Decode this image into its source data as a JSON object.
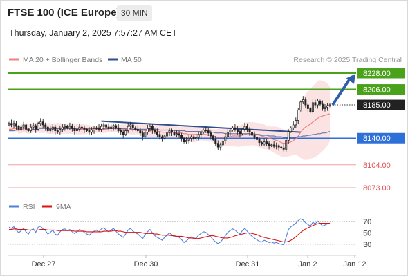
{
  "header": {
    "title": "FTSE 100 (ICE Europe)",
    "timeframe": "30 MIN",
    "datetime": "Thursday, January 2, 2025 7:57:27 AM CET"
  },
  "legend": {
    "ma20": "MA 20 + Bollinger Bands",
    "ma50": "MA 50",
    "ma20_color": "#f08080",
    "ma50_color": "#2e4f8f"
  },
  "copyright": "Research © 2025 Trading Central",
  "colors": {
    "green": "#4aa11a",
    "blue": "#2f6fd8",
    "red": "#e05252",
    "dark": "#222222",
    "bollinger": "#fbd9d9"
  },
  "chart_data": [
    {
      "type": "candlestick",
      "title": "FTSE 100 (ICE Europe)",
      "ylim": [
        8060,
        8238
      ],
      "x_ticks": [
        "Dec 27",
        "Dec 30",
        "Dec 31",
        "Jan 2",
        "Jan 12"
      ],
      "levels": [
        {
          "label": "8228.00",
          "value": 8228,
          "kind": "target"
        },
        {
          "label": "8206.00",
          "value": 8206,
          "kind": "target"
        },
        {
          "label": "8185.00",
          "value": 8185,
          "kind": "last_price"
        },
        {
          "label": "8140.00",
          "value": 8140,
          "kind": "pivot"
        },
        {
          "label": "8104.00",
          "value": 8104,
          "kind": "support"
        },
        {
          "label": "8073.00",
          "value": 8073,
          "kind": "support"
        }
      ],
      "trendline": {
        "from": 8163,
        "to": 8148
      },
      "arrow": {
        "from": 8185,
        "to": 8227
      },
      "close": [
        8160,
        8158,
        8160,
        8156,
        8152,
        8155,
        8158,
        8152,
        8150,
        8155,
        8157,
        8152,
        8160,
        8162,
        8158,
        8155,
        8150,
        8152,
        8155,
        8150,
        8148,
        8152,
        8155,
        8156,
        8154,
        8156,
        8153,
        8150,
        8152,
        8155,
        8154,
        8152,
        8150,
        8148,
        8151,
        8153,
        8154,
        8152,
        8156,
        8158,
        8155,
        8153,
        8155,
        8157,
        8154,
        8150,
        8148,
        8145,
        8150,
        8156,
        8158,
        8154,
        8152,
        8150,
        8147,
        8142,
        8148,
        8153,
        8156,
        8151,
        8148,
        8145,
        8142,
        8140,
        8143,
        8147,
        8150,
        8148,
        8145,
        8146,
        8144,
        8140,
        8135,
        8137,
        8140,
        8142,
        8139,
        8141,
        8145,
        8148,
        8151,
        8150,
        8147,
        8143,
        8138,
        8133,
        8128,
        8131,
        8136,
        8142,
        8148,
        8151,
        8154,
        8152,
        8149,
        8146,
        8152,
        8156,
        8152,
        8148,
        8144,
        8141,
        8138,
        8134,
        8132,
        8135,
        8133,
        8130,
        8131,
        8129,
        8130,
        8128,
        8127,
        8125,
        8137,
        8149,
        8154,
        8158,
        8164,
        8178,
        8189,
        8192,
        8185,
        8180,
        8176,
        8188,
        8185,
        8190,
        8186,
        8180,
        8182,
        8184,
        8185
      ],
      "ma20": [
        8152,
        8152,
        8153,
        8153,
        8152,
        8152,
        8153,
        8153,
        8153,
        8153,
        8154,
        8154,
        8154,
        8154,
        8154,
        8154,
        8153,
        8153,
        8153,
        8153,
        8153,
        8153,
        8153,
        8153,
        8153,
        8153,
        8153,
        8153,
        8152,
        8152,
        8152,
        8152,
        8152,
        8152,
        8152,
        8152,
        8152,
        8152,
        8152,
        8152,
        8152,
        8153,
        8153,
        8153,
        8153,
        8153,
        8153,
        8152,
        8152,
        8152,
        8152,
        8152,
        8152,
        8152,
        8151,
        8151,
        8150,
        8150,
        8150,
        8150,
        8150,
        8149,
        8149,
        8148,
        8148,
        8148,
        8148,
        8148,
        8148,
        8147,
        8147,
        8147,
        8146,
        8146,
        8145,
        8145,
        8145,
        8145,
        8145,
        8145,
        8145,
        8145,
        8144,
        8144,
        8143,
        8142,
        8141,
        8141,
        8141,
        8141,
        8142,
        8142,
        8143,
        8143,
        8143,
        8143,
        8144,
        8145,
        8146,
        8146,
        8146,
        8146,
        8145,
        8144,
        8143,
        8142,
        8141,
        8140,
        8139,
        8138,
        8137,
        8136,
        8134,
        8133,
        8133,
        8134,
        8135,
        8137,
        8139,
        8143,
        8148,
        8152,
        8155,
        8157,
        8159,
        8162,
        8164,
        8167,
        8169,
        8170,
        8171,
        8172,
        8173
      ],
      "ma50": [
        8150,
        8150,
        8150,
        8151,
        8151,
        8151,
        8151,
        8151,
        8152,
        8152,
        8152,
        8152,
        8153,
        8153,
        8153,
        8153,
        8153,
        8153,
        8153,
        8153,
        8153,
        8153,
        8153,
        8153,
        8153,
        8153,
        8153,
        8153,
        8153,
        8153,
        8153,
        8153,
        8153,
        8153,
        8153,
        8153,
        8153,
        8153,
        8153,
        8153,
        8153,
        8153,
        8153,
        8153,
        8153,
        8153,
        8153,
        8153,
        8153,
        8153,
        8153,
        8152,
        8152,
        8152,
        8152,
        8152,
        8152,
        8152,
        8152,
        8152,
        8152,
        8152,
        8151,
        8151,
        8151,
        8151,
        8151,
        8151,
        8150,
        8150,
        8150,
        8150,
        8150,
        8149,
        8149,
        8149,
        8149,
        8149,
        8149,
        8149,
        8148,
        8148,
        8148,
        8148,
        8148,
        8147,
        8147,
        8147,
        8147,
        8146,
        8146,
        8146,
        8146,
        8146,
        8146,
        8146,
        8146,
        8146,
        8146,
        8146,
        8145,
        8145,
        8145,
        8145,
        8144,
        8144,
        8144,
        8143,
        8143,
        8143,
        8142,
        8142,
        8142,
        8141,
        8141,
        8141,
        8141,
        8141,
        8141,
        8142,
        8142,
        8143,
        8143,
        8144,
        8144,
        8145,
        8145,
        8146,
        8146,
        8147,
        8147,
        8148,
        8149
      ]
    },
    {
      "type": "line",
      "title": "RSI",
      "ylim": [
        20,
        80
      ],
      "y_ticks": [
        70,
        50,
        30
      ],
      "legend": [
        "RSI",
        "9MA"
      ],
      "series": [
        {
          "name": "RSI",
          "color": "#4f7fd9",
          "values": [
            60,
            58,
            61,
            55,
            50,
            54,
            58,
            52,
            48,
            55,
            57,
            51,
            60,
            62,
            57,
            54,
            48,
            51,
            55,
            48,
            46,
            52,
            56,
            57,
            54,
            56,
            52,
            49,
            52,
            56,
            54,
            51,
            48,
            46,
            50,
            53,
            55,
            52,
            57,
            59,
            55,
            52,
            55,
            58,
            53,
            48,
            45,
            42,
            48,
            55,
            58,
            53,
            50,
            48,
            44,
            40,
            47,
            52,
            56,
            50,
            45,
            42,
            40,
            37,
            42,
            46,
            50,
            47,
            43,
            44,
            42,
            38,
            33,
            36,
            40,
            43,
            39,
            41,
            46,
            49,
            52,
            51,
            47,
            43,
            38,
            34,
            31,
            34,
            39,
            45,
            51,
            54,
            57,
            55,
            51,
            48,
            54,
            58,
            53,
            48,
            44,
            41,
            38,
            35,
            34,
            37,
            35,
            33,
            34,
            32,
            33,
            31,
            30,
            29,
            42,
            56,
            61,
            64,
            67,
            72,
            75,
            73,
            68,
            65,
            62,
            69,
            66,
            71,
            67,
            62,
            64,
            66,
            67
          ]
        },
        {
          "name": "9MA",
          "color": "#dd1111",
          "values": [
            56,
            56,
            57,
            57,
            56,
            56,
            56,
            56,
            55,
            55,
            55,
            55,
            55,
            56,
            56,
            56,
            55,
            55,
            55,
            55,
            54,
            54,
            54,
            54,
            54,
            54,
            54,
            53,
            53,
            53,
            53,
            53,
            52,
            52,
            52,
            52,
            52,
            52,
            52,
            53,
            53,
            53,
            53,
            54,
            54,
            53,
            53,
            52,
            51,
            51,
            51,
            51,
            51,
            51,
            51,
            50,
            49,
            49,
            49,
            49,
            48,
            48,
            47,
            46,
            46,
            46,
            46,
            45,
            45,
            44,
            44,
            44,
            43,
            42,
            41,
            41,
            41,
            40,
            40,
            41,
            42,
            43,
            44,
            45,
            45,
            44,
            43,
            42,
            41,
            41,
            41,
            42,
            43,
            45,
            46,
            47,
            48,
            49,
            50,
            50,
            49,
            48,
            47,
            45,
            43,
            42,
            41,
            40,
            39,
            38,
            37,
            36,
            35,
            34,
            34,
            35,
            37,
            40,
            43,
            47,
            51,
            54,
            57,
            59,
            61,
            63,
            65,
            66,
            67,
            67,
            67,
            67,
            67
          ]
        }
      ]
    }
  ]
}
